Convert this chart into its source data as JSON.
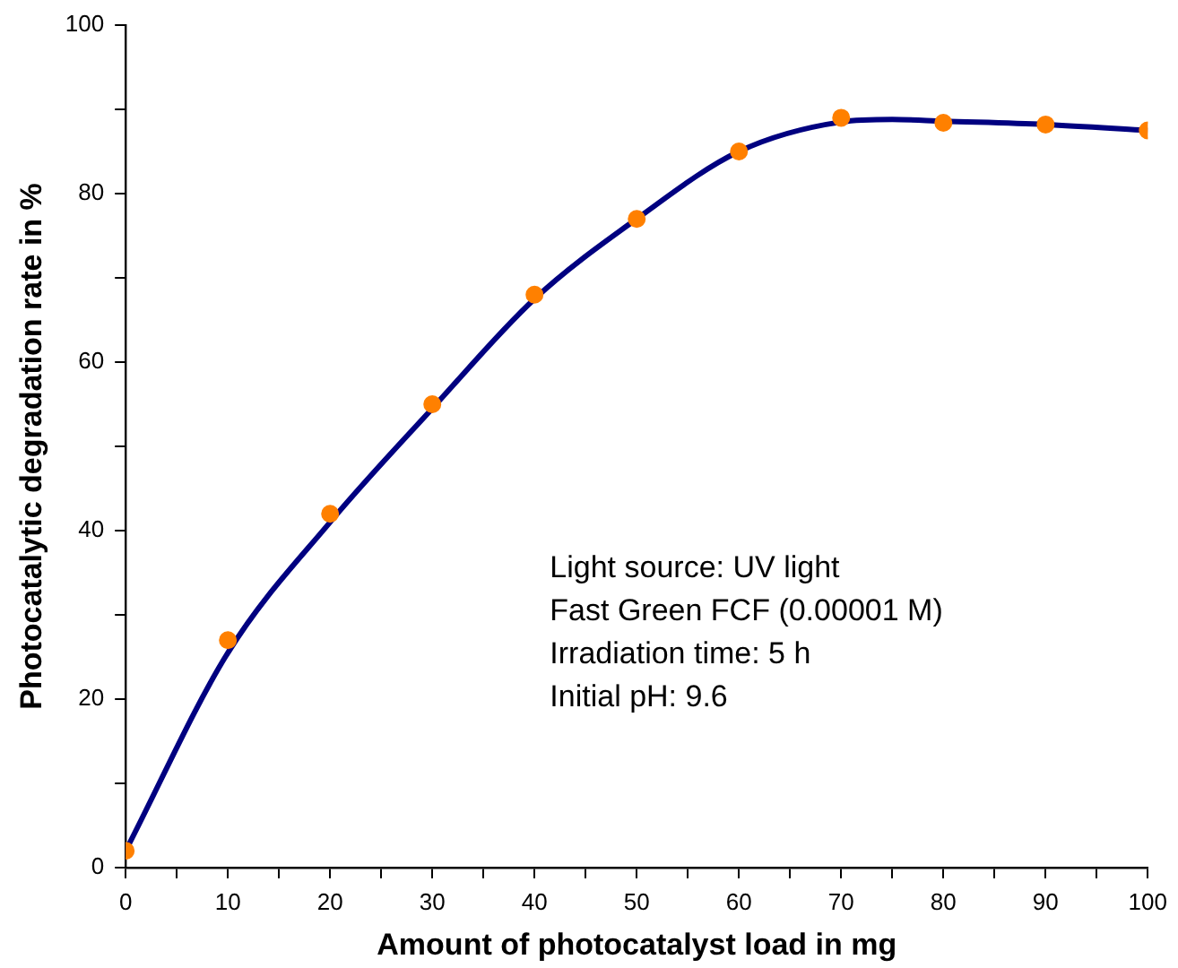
{
  "chart_data": {
    "type": "scatter",
    "xlabel": "Amount of photocatalyst load in mg",
    "ylabel": "Photocatalytic degradation rate in %",
    "x": [
      0,
      10,
      20,
      30,
      40,
      50,
      60,
      70,
      80,
      90,
      100
    ],
    "series": [
      {
        "color": "#ff8000",
        "marker": "circle",
        "values": [
          2,
          27,
          42,
          55,
          68,
          77,
          85,
          89,
          88.4,
          88.2,
          87.5
        ]
      },
      {
        "type": "line",
        "color": "#000080",
        "marker": "none",
        "x": [
          0,
          10,
          20,
          30,
          40,
          50,
          60,
          70,
          75,
          80,
          90,
          100
        ],
        "values": [
          2,
          25.5,
          41,
          54.5,
          67.5,
          77,
          85,
          88.5,
          88.8,
          88.6,
          88.2,
          87.5
        ]
      }
    ],
    "xlim": [
      0,
      100
    ],
    "ylim": [
      0,
      100
    ],
    "xticks": [
      0,
      {
        "value": 5,
        "label": null
      },
      10,
      {
        "value": 15,
        "label": null
      },
      20,
      {
        "value": 25,
        "label": null
      },
      30,
      {
        "value": 35,
        "label": null
      },
      40,
      {
        "value": 45,
        "label": null
      },
      50,
      {
        "value": 55,
        "label": null
      },
      60,
      {
        "value": 65,
        "label": null
      },
      70,
      {
        "value": 75,
        "label": null
      },
      80,
      {
        "value": 85,
        "label": null
      },
      90,
      {
        "value": 95,
        "label": null
      },
      100
    ],
    "yticks": [
      0,
      {
        "value": 10,
        "label": null
      },
      20,
      {
        "value": 30,
        "label": null
      },
      40,
      {
        "value": 50,
        "label": null
      },
      60,
      {
        "value": 70,
        "label": null
      },
      80,
      {
        "value": 90,
        "label": null
      },
      100
    ],
    "annotations": [
      "Light source: UV light",
      "Fast Green FCF (0.00001 M)",
      "Irradiation time: 5 h",
      "Initial pH: 9.6"
    ],
    "grid": false,
    "legend": false
  }
}
